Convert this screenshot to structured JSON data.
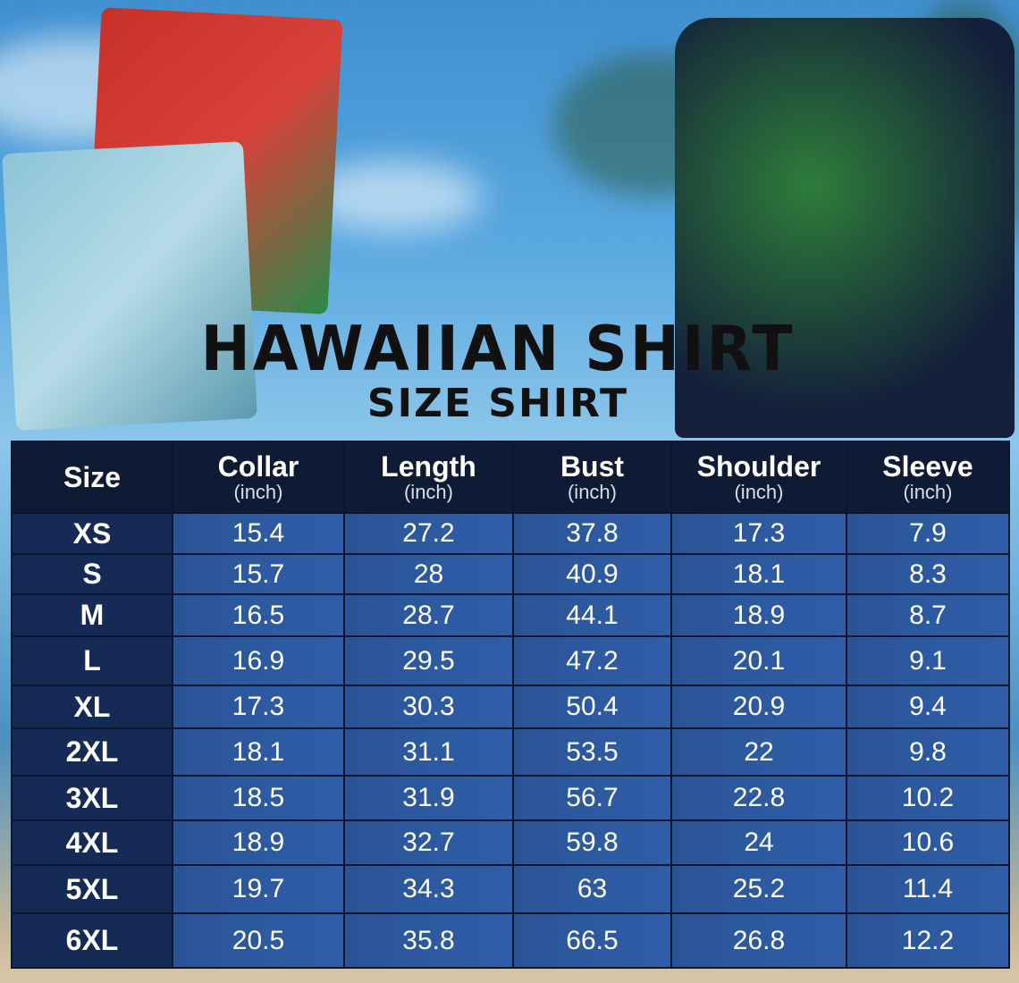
{
  "title": "HAWAIIAN SHIRT",
  "subtitle": "SIZE SHIRT",
  "table": {
    "headers": [
      {
        "label": "Size",
        "unit": ""
      },
      {
        "label": "Collar",
        "unit": "(inch)"
      },
      {
        "label": "Length",
        "unit": "(inch)"
      },
      {
        "label": "Bust",
        "unit": "(inch)"
      },
      {
        "label": "Shoulder",
        "unit": "(inch)"
      },
      {
        "label": "Sleeve",
        "unit": "(inch)"
      }
    ],
    "rows": [
      [
        "XS",
        "15.4",
        "27.2",
        "37.8",
        "17.3",
        "7.9"
      ],
      [
        "S",
        "15.7",
        "28",
        "40.9",
        "18.1",
        "8.3"
      ],
      [
        "M",
        "16.5",
        "28.7",
        "44.1",
        "18.9",
        "8.7"
      ],
      [
        "L",
        "16.9",
        "29.5",
        "47.2",
        "20.1",
        "9.1"
      ],
      [
        "XL",
        "17.3",
        "30.3",
        "50.4",
        "20.9",
        "9.4"
      ],
      [
        "2XL",
        "18.1",
        "31.1",
        "53.5",
        "22",
        "9.8"
      ],
      [
        "3XL",
        "18.5",
        "31.9",
        "56.7",
        "22.8",
        "10.2"
      ],
      [
        "4XL",
        "18.9",
        "32.7",
        "59.8",
        "24",
        "10.6"
      ],
      [
        "5XL",
        "19.7",
        "34.3",
        "63",
        "25.2",
        "11.4"
      ],
      [
        "6XL",
        "20.5",
        "35.8",
        "66.5",
        "26.8",
        "12.2"
      ]
    ]
  },
  "colors": {
    "header": "#0f1a35",
    "size_col": "#152a55",
    "cell": "#2f5ea8"
  }
}
